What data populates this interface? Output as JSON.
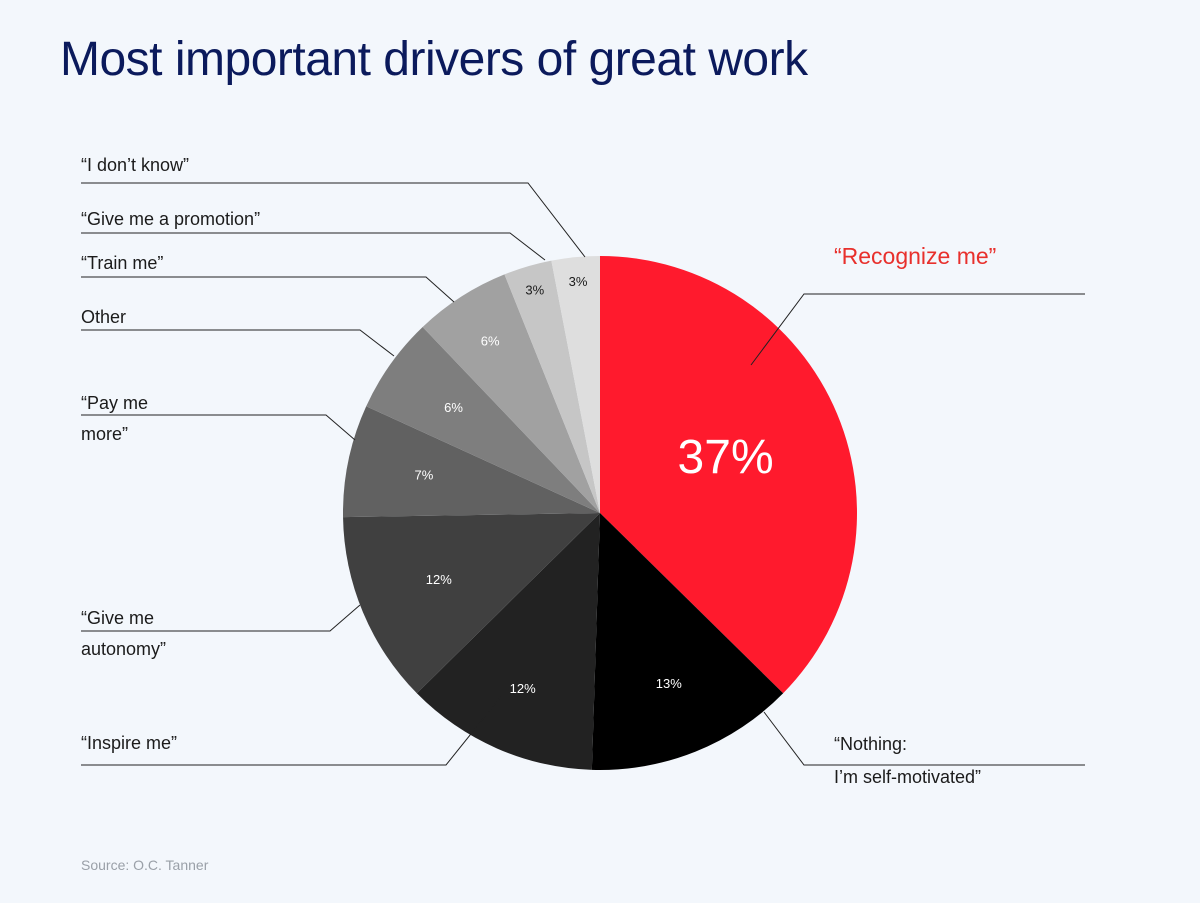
{
  "title": "Most important drivers of great work",
  "source": "Source: O.C. Tanner",
  "chart_data": {
    "type": "pie",
    "start_angle_deg": 0,
    "direction": "clockwise",
    "slices": [
      {
        "label": [
          "“Recognize me”"
        ],
        "value": 37,
        "value_label": "37%",
        "color": "#ff1a2d",
        "highlight": true
      },
      {
        "label": [
          "“Nothing:",
          "I’m self-motivated”"
        ],
        "value": 13,
        "value_label": "13%",
        "color": "#000000"
      },
      {
        "label": [
          "“Inspire me”"
        ],
        "value": 12,
        "value_label": "12%",
        "color": "#222222"
      },
      {
        "label": [
          "“Give me",
          "autonomy”"
        ],
        "value": 12,
        "value_label": "12%",
        "color": "#404040"
      },
      {
        "label": [
          "“Pay me",
          "more”"
        ],
        "value": 7,
        "value_label": "7%",
        "color": "#616161"
      },
      {
        "label": [
          "Other"
        ],
        "value": 6,
        "value_label": "6%",
        "color": "#7e7e7e"
      },
      {
        "label": [
          "“Train me”"
        ],
        "value": 6,
        "value_label": "6%",
        "color": "#a1a1a1"
      },
      {
        "label": [
          "“Give me a promotion”"
        ],
        "value": 3,
        "value_label": "3%",
        "color": "#c6c6c6"
      },
      {
        "label": [
          "“I don’t know”"
        ],
        "value": 3,
        "value_label": "3%",
        "color": "#dedede"
      }
    ]
  }
}
